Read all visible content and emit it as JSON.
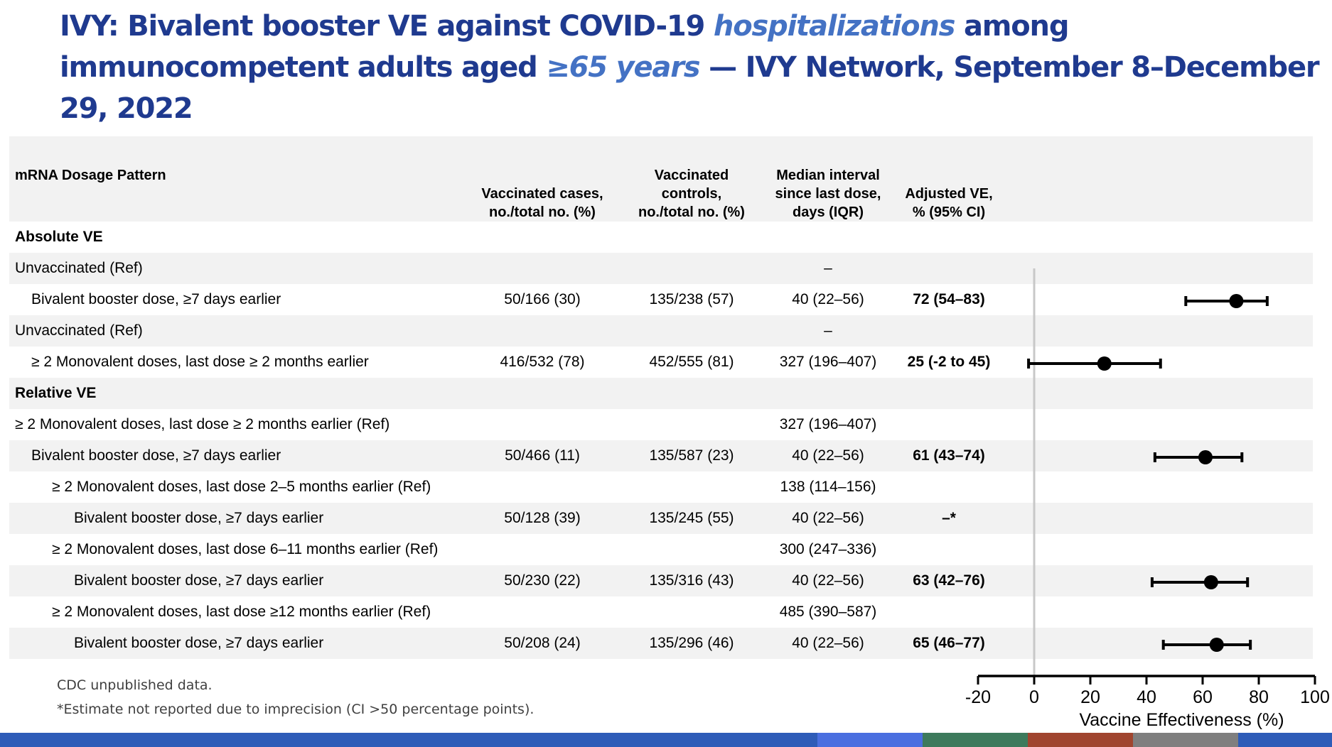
{
  "title": {
    "part1": "IVY: Bivalent booster VE against COVID-19",
    "part2": "hospitalizations",
    "part3": "among immunocompetent adults aged",
    "part4": "≥65 years",
    "part5": "— IVY Network, September 8–December 29, 2022"
  },
  "table": {
    "headers": {
      "label": "mRNA Dosage Pattern",
      "cases": [
        "Vaccinated cases,",
        "no./total no. (%)"
      ],
      "controls": [
        "Vaccinated",
        "controls,",
        "no./total no. (%)"
      ],
      "median": [
        "Median interval",
        "since last dose,",
        "days (IQR)"
      ],
      "ve": [
        "Adjusted VE,",
        "% (95% CI)"
      ]
    },
    "rows": [
      {
        "label": "Absolute VE",
        "type": "section",
        "indent": 0,
        "shade": false,
        "cases": "",
        "controls": "",
        "median": "",
        "ve": ""
      },
      {
        "label": "Unvaccinated (Ref)",
        "type": "ref",
        "indent": 0,
        "shade": true,
        "cases": "",
        "controls": "",
        "median": "–",
        "ve": ""
      },
      {
        "label": "Bivalent booster dose, ≥7 days earlier",
        "type": "data",
        "indent": 1,
        "shade": false,
        "cases": "50/166 (30)",
        "controls": "135/238 (57)",
        "median": "40 (22–56)",
        "ve": "72 (54–83)"
      },
      {
        "label": "Unvaccinated (Ref)",
        "type": "ref",
        "indent": 0,
        "shade": true,
        "cases": "",
        "controls": "",
        "median": "–",
        "ve": ""
      },
      {
        "label": "≥ 2 Monovalent doses, last dose ≥ 2 months earlier",
        "type": "data",
        "indent": 1,
        "shade": false,
        "cases": "416/532 (78)",
        "controls": "452/555 (81)",
        "median": "327 (196–407)",
        "ve": "25 (-2 to 45)"
      },
      {
        "label": "Relative VE",
        "type": "section",
        "indent": 0,
        "shade": true,
        "cases": "",
        "controls": "",
        "median": "",
        "ve": ""
      },
      {
        "label": "≥ 2 Monovalent doses, last dose ≥ 2 months earlier (Ref)",
        "type": "ref",
        "indent": 0,
        "shade": false,
        "cases": "",
        "controls": "",
        "median": "327 (196–407)",
        "ve": ""
      },
      {
        "label": "Bivalent booster dose, ≥7 days earlier",
        "type": "data",
        "indent": 1,
        "shade": true,
        "cases": "50/466 (11)",
        "controls": "135/587 (23)",
        "median": "40 (22–56)",
        "ve": "61 (43–74)"
      },
      {
        "label": "≥ 2 Monovalent doses, last dose 2–5 months earlier (Ref)",
        "type": "ref",
        "indent": 2,
        "shade": false,
        "cases": "",
        "controls": "",
        "median": "138 (114–156)",
        "ve": ""
      },
      {
        "label": "Bivalent booster dose, ≥7 days earlier",
        "type": "data",
        "indent": 3,
        "shade": true,
        "cases": "50/128 (39)",
        "controls": "135/245 (55)",
        "median": "40 (22–56)",
        "ve": "–*"
      },
      {
        "label": "≥ 2 Monovalent doses, last dose 6–11 months earlier (Ref)",
        "type": "ref",
        "indent": 2,
        "shade": false,
        "cases": "",
        "controls": "",
        "median": "300 (247–336)",
        "ve": ""
      },
      {
        "label": "Bivalent booster dose, ≥7 days earlier",
        "type": "data",
        "indent": 3,
        "shade": true,
        "cases": "50/230 (22)",
        "controls": "135/316 (43)",
        "median": "40 (22–56)",
        "ve": "63 (42–76)"
      },
      {
        "label": "≥ 2 Monovalent doses, last dose ≥12 months earlier (Ref)",
        "type": "ref",
        "indent": 2,
        "shade": false,
        "cases": "",
        "controls": "",
        "median": "485 (390–587)",
        "ve": ""
      },
      {
        "label": "Bivalent booster dose, ≥7 days earlier",
        "type": "data",
        "indent": 3,
        "shade": true,
        "cases": "50/208 (24)",
        "controls": "135/296 (46)",
        "median": "40 (22–56)",
        "ve": "65 (46–77)"
      }
    ]
  },
  "chart_data": {
    "type": "scatter",
    "title": "",
    "xlabel": "Vaccine Effectiveness (%)",
    "ylabel": "",
    "xlim": [
      -20,
      100
    ],
    "xticks": [
      -20,
      0,
      20,
      40,
      60,
      80,
      100
    ],
    "reference_line": 0,
    "grid": false,
    "points": [
      {
        "row": 2,
        "estimate": 72,
        "lower": 54,
        "upper": 83
      },
      {
        "row": 4,
        "estimate": 25,
        "lower": -2,
        "upper": 45
      },
      {
        "row": 7,
        "estimate": 61,
        "lower": 43,
        "upper": 74
      },
      {
        "row": 11,
        "estimate": 63,
        "lower": 42,
        "upper": 76
      },
      {
        "row": 13,
        "estimate": 65,
        "lower": 46,
        "upper": 77
      }
    ]
  },
  "footnotes": {
    "source": "CDC unpublished data.",
    "note": "*Estimate not reported due to imprecision (CI >50 percentage points)."
  },
  "colors": {
    "title": "#1f3a8f",
    "title_highlight": "#4472c4",
    "row_shade": "#f2f2f2",
    "bottom_bar": [
      "#2e5cb8",
      "#4a6fe0",
      "#3d7a5c",
      "#a0452f",
      "#7f7f7f",
      "#2e5cb8"
    ]
  }
}
